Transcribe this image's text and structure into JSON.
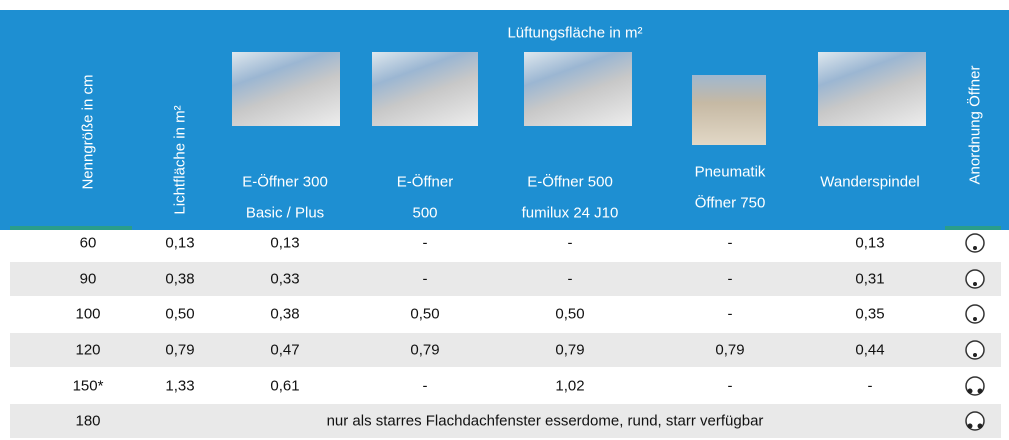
{
  "header": {
    "group_title": "Lüftungsfläche in m²",
    "columns": [
      [
        "Nenngröße in cm"
      ],
      [
        "Lichtfläche in m²"
      ],
      [
        "E-Öffner 300",
        "Basic / Plus"
      ],
      [
        "E-Öffner",
        "500"
      ],
      [
        "E-Öffner 500",
        "fumilux 24 J10"
      ],
      [
        "Pneumatik",
        "Öffner 750"
      ],
      [
        "Wanderspindel"
      ],
      [
        "Anordnung Öffner"
      ]
    ]
  },
  "table": {
    "rows": [
      [
        "60",
        "0,13",
        "0,13",
        "-",
        "-",
        "-",
        "0,13"
      ],
      [
        "90",
        "0,38",
        "0,33",
        "-",
        "-",
        "-",
        "0,31"
      ],
      [
        "100",
        "0,50",
        "0,38",
        "0,50",
        "0,50",
        "-",
        "0,35"
      ],
      [
        "120",
        "0,79",
        "0,47",
        "0,79",
        "0,79",
        "0,79",
        "0,44"
      ],
      [
        "150*",
        "1,33",
        "0,61",
        "-",
        "1,02",
        "-",
        "-"
      ],
      [
        "180",
        "nur als starres Flachdachfenster esserdome, rund, starr verfügbar"
      ]
    ]
  }
}
